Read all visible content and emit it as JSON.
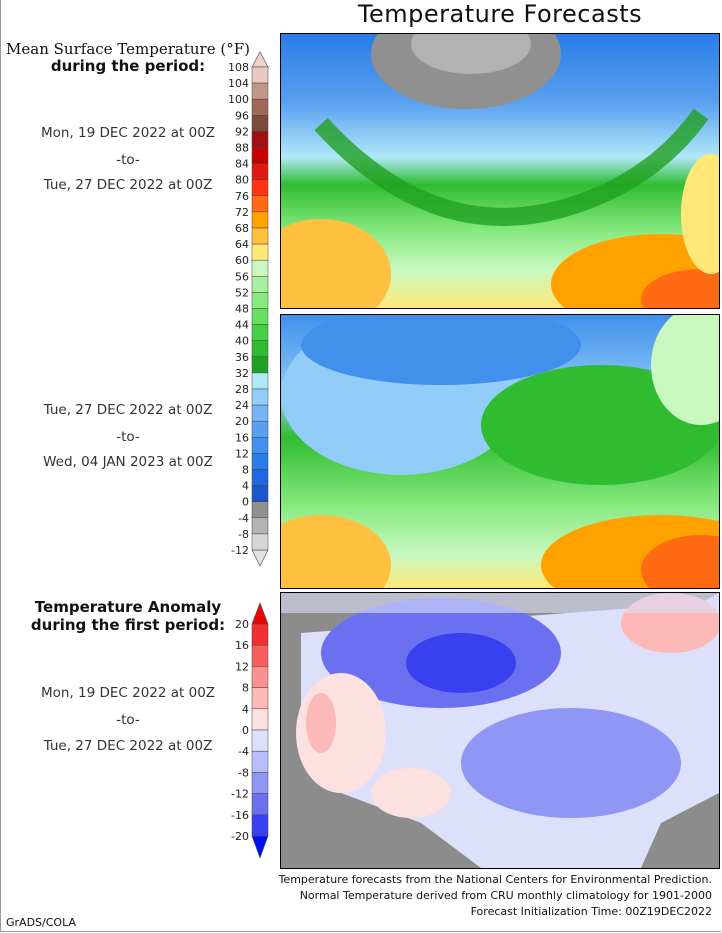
{
  "title": "Temperature Forecasts",
  "panel1": {
    "heading_line1": "Mean Surface Temperature (°F)",
    "heading_line2": "during the period:",
    "start": "Mon, 19 DEC 2022 at 00Z",
    "sep": "-to-",
    "end": "Tue, 27 DEC 2022 at 00Z"
  },
  "panel2": {
    "start": "Tue, 27 DEC 2022 at 00Z",
    "sep": "-to-",
    "end": "Wed, 04 JAN 2023 at 00Z"
  },
  "panel3": {
    "heading_line1": "Temperature Anomaly",
    "heading_line2": "during the first period:",
    "start": "Mon, 19 DEC 2022 at 00Z",
    "sep": "-to-",
    "end": "Tue, 27 DEC 2022 at 00Z"
  },
  "temp_colorbar": {
    "ticks": [
      "108",
      "104",
      "100",
      "96",
      "92",
      "88",
      "84",
      "80",
      "76",
      "72",
      "68",
      "64",
      "60",
      "56",
      "52",
      "48",
      "44",
      "40",
      "36",
      "32",
      "28",
      "24",
      "20",
      "16",
      "12",
      "8",
      "4",
      "0",
      "-4",
      "-8",
      "-12"
    ],
    "colors": [
      "#e8c8c0",
      "#c0958a",
      "#a06858",
      "#7a4a3c",
      "#a01010",
      "#c40000",
      "#e01a10",
      "#ff3412",
      "#ff6a12",
      "#ffa200",
      "#ffc040",
      "#ffe878",
      "#c8f8c0",
      "#a8f0a0",
      "#88ea80",
      "#66e060",
      "#44d044",
      "#30bc30",
      "#20a020",
      "#b0e8f8",
      "#92ccf8",
      "#78b4f4",
      "#5aa0f0",
      "#4090ec",
      "#2a7ce8",
      "#2068e0",
      "#1858cc",
      "#909090",
      "#b2b2b2",
      "#d6d6d6"
    ],
    "over_color": "#f0d0c8",
    "under_color": "#e2e2e2"
  },
  "anomaly_colorbar": {
    "ticks": [
      "20",
      "16",
      "12",
      "8",
      "4",
      "0",
      "-4",
      "-8",
      "-12",
      "-16",
      "-20"
    ],
    "colors": [
      "#f03030",
      "#f86060",
      "#fc9090",
      "#fdb8b8",
      "#fde0e0",
      "#dce0fa",
      "#b8bcf8",
      "#9096f4",
      "#6a70f0",
      "#3840f0"
    ],
    "over_color": "#f00000",
    "under_color": "#0010f0"
  },
  "footer": {
    "line1": "Temperature forecasts from the National Centers for Environmental Prediction.",
    "line2": "Normal Temperature derived from CRU monthly climatology for 1901-2000",
    "line3": "Forecast Initialization Time: 00Z19DEC2022",
    "credit": "GrADS/COLA"
  }
}
